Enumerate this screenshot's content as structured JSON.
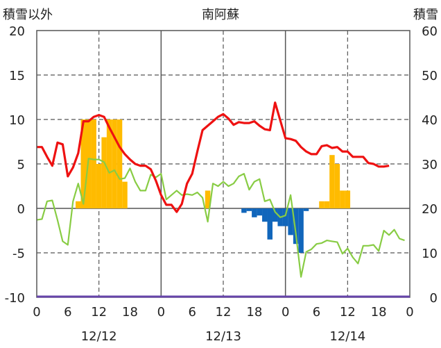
{
  "chart_data": {
    "type": "bar+line",
    "title": "南阿蘇",
    "left_axis_label": "積雪以外",
    "right_axis_label": "積雪",
    "y_left": {
      "min": -10,
      "max": 20,
      "ticks": [
        20,
        15,
        10,
        5,
        0,
        -5,
        -10
      ]
    },
    "y_right": {
      "min": 0,
      "max": 60,
      "ticks": [
        60,
        50,
        40,
        30,
        20,
        10,
        0
      ]
    },
    "x_hours": {
      "min": 0,
      "max": 72
    },
    "x_tick_labels": [
      "0",
      "6",
      "12",
      "18",
      "0",
      "6",
      "12",
      "18",
      "0",
      "6",
      "12",
      "18",
      "0"
    ],
    "x_tick_hours": [
      0,
      6,
      12,
      18,
      24,
      30,
      36,
      42,
      48,
      54,
      60,
      66,
      72
    ],
    "date_labels": [
      {
        "text": "12/12",
        "hour": 12
      },
      {
        "text": "12/13",
        "hour": 36
      },
      {
        "text": "12/14",
        "hour": 60
      }
    ],
    "grid": {
      "vertical_dashed_hours": [
        12,
        36,
        60
      ],
      "vertical_solid_hours": [
        24,
        48
      ],
      "horizontal_dashed": [
        15,
        10,
        5,
        -5
      ],
      "horizontal_solid": [
        0
      ]
    },
    "colors": {
      "temperature": "#ee1111",
      "secondary_line": "#88cc44",
      "precip_bars": "#ffbb00",
      "negative_bars": "#1166bb",
      "baseline": "#6644aa",
      "grid": "#555555"
    },
    "precip_bars": [
      {
        "hour": 8,
        "value": 0.8
      },
      {
        "hour": 9,
        "value": 10
      },
      {
        "hour": 10,
        "value": 10
      },
      {
        "hour": 11,
        "value": 10
      },
      {
        "hour": 12,
        "value": 5
      },
      {
        "hour": 13,
        "value": 8
      },
      {
        "hour": 14,
        "value": 10
      },
      {
        "hour": 15,
        "value": 10
      },
      {
        "hour": 16,
        "value": 10
      },
      {
        "hour": 17,
        "value": 3
      },
      {
        "hour": 33,
        "value": 2
      },
      {
        "hour": 55,
        "value": 0.8
      },
      {
        "hour": 56,
        "value": 0.8
      },
      {
        "hour": 57,
        "value": 6
      },
      {
        "hour": 58,
        "value": 5
      },
      {
        "hour": 59,
        "value": 2
      },
      {
        "hour": 60,
        "value": 2
      }
    ],
    "negative_bars": [
      {
        "hour": 40,
        "value": -0.5
      },
      {
        "hour": 41,
        "value": -0.3
      },
      {
        "hour": 42,
        "value": -1
      },
      {
        "hour": 43,
        "value": -0.8
      },
      {
        "hour": 44,
        "value": -1.5
      },
      {
        "hour": 45,
        "value": -3.5
      },
      {
        "hour": 46,
        "value": -1.5
      },
      {
        "hour": 47,
        "value": -2
      },
      {
        "hour": 48,
        "value": -2
      },
      {
        "hour": 49,
        "value": -3
      },
      {
        "hour": 50,
        "value": -4
      },
      {
        "hour": 51,
        "value": -5
      },
      {
        "hour": 52,
        "value": -0.3
      }
    ],
    "temperature": [
      [
        0,
        6.9
      ],
      [
        1,
        6.9
      ],
      [
        2,
        5.8
      ],
      [
        3,
        4.8
      ],
      [
        4,
        7.4
      ],
      [
        5,
        7.2
      ],
      [
        6,
        3.6
      ],
      [
        7,
        4.6
      ],
      [
        8,
        6.2
      ],
      [
        9,
        9.8
      ],
      [
        10,
        9.8
      ],
      [
        11,
        10.3
      ],
      [
        12,
        10.5
      ],
      [
        13,
        10.3
      ],
      [
        14,
        9.1
      ],
      [
        15,
        8
      ],
      [
        16,
        6.9
      ],
      [
        17,
        6.1
      ],
      [
        18,
        5.5
      ],
      [
        19,
        5
      ],
      [
        20,
        4.8
      ],
      [
        21,
        4.8
      ],
      [
        22,
        4.4
      ],
      [
        23,
        3.1
      ],
      [
        24,
        1.5
      ],
      [
        25,
        0.4
      ],
      [
        26,
        0.4
      ],
      [
        27,
        -0.4
      ],
      [
        28,
        0.5
      ],
      [
        29,
        2.8
      ],
      [
        30,
        3.9
      ],
      [
        31,
        6.4
      ],
      [
        32,
        8.8
      ],
      [
        33,
        9.3
      ],
      [
        34,
        9.8
      ],
      [
        35,
        10.3
      ],
      [
        36,
        10.6
      ],
      [
        37,
        10.1
      ],
      [
        38,
        9.4
      ],
      [
        39,
        9.7
      ],
      [
        40,
        9.6
      ],
      [
        41,
        9.6
      ],
      [
        42,
        9.8
      ],
      [
        43,
        9.3
      ],
      [
        44,
        8.9
      ],
      [
        45,
        8.8
      ],
      [
        46,
        11.9
      ],
      [
        47,
        9.9
      ],
      [
        48,
        7.9
      ],
      [
        49,
        7.8
      ],
      [
        50,
        7.6
      ],
      [
        51,
        6.9
      ],
      [
        52,
        6.4
      ],
      [
        53,
        6.1
      ],
      [
        54,
        6.1
      ],
      [
        55,
        7
      ],
      [
        56,
        7.1
      ],
      [
        57,
        6.8
      ],
      [
        58,
        6.9
      ],
      [
        59,
        6.4
      ],
      [
        60,
        6.4
      ],
      [
        61,
        5.8
      ],
      [
        62,
        5.8
      ],
      [
        63,
        5.8
      ],
      [
        64,
        5.1
      ],
      [
        65,
        5
      ],
      [
        66,
        4.7
      ],
      [
        67,
        4.7
      ],
      [
        68,
        4.8
      ]
    ],
    "secondary_line": [
      [
        0,
        -1.3
      ],
      [
        1,
        -1.2
      ],
      [
        2,
        0.8
      ],
      [
        3,
        0.9
      ],
      [
        4,
        -1.3
      ],
      [
        5,
        -3.7
      ],
      [
        6,
        -4.1
      ],
      [
        7,
        0.8
      ],
      [
        8,
        2.8
      ],
      [
        9,
        0.5
      ],
      [
        10,
        5.6
      ],
      [
        11,
        5.5
      ],
      [
        12,
        5.5
      ],
      [
        13,
        5.2
      ],
      [
        14,
        4
      ],
      [
        15,
        4.3
      ],
      [
        16,
        3.3
      ],
      [
        17,
        3.4
      ],
      [
        18,
        4.5
      ],
      [
        19,
        3
      ],
      [
        20,
        2
      ],
      [
        21,
        2
      ],
      [
        22,
        3.8
      ],
      [
        23,
        3.5
      ],
      [
        24,
        3.9
      ],
      [
        25,
        1
      ],
      [
        26,
        1.5
      ],
      [
        27,
        2
      ],
      [
        28,
        1.5
      ],
      [
        29,
        1.6
      ],
      [
        30,
        1.5
      ],
      [
        31,
        1.8
      ],
      [
        32,
        1.2
      ],
      [
        33,
        -1.5
      ],
      [
        34,
        2.8
      ],
      [
        35,
        2.5
      ],
      [
        36,
        3
      ],
      [
        37,
        2.5
      ],
      [
        38,
        2.8
      ],
      [
        39,
        3.6
      ],
      [
        40,
        3.9
      ],
      [
        41,
        2.1
      ],
      [
        42,
        3
      ],
      [
        43,
        3.3
      ],
      [
        44,
        0.8
      ],
      [
        45,
        1
      ],
      [
        46,
        -0.4
      ],
      [
        47,
        -1
      ],
      [
        48,
        -0.8
      ],
      [
        49,
        1.5
      ],
      [
        50,
        -2.8
      ],
      [
        51,
        -7.7
      ],
      [
        52,
        -4.9
      ],
      [
        53,
        -4.6
      ],
      [
        54,
        -4
      ],
      [
        55,
        -3.9
      ],
      [
        56,
        -3.6
      ],
      [
        57,
        -3.7
      ],
      [
        58,
        -3.8
      ],
      [
        59,
        -5.1
      ],
      [
        60,
        -4.5
      ],
      [
        61,
        -5.5
      ],
      [
        62,
        -6.2
      ],
      [
        63,
        -4.2
      ],
      [
        64,
        -4.2
      ],
      [
        65,
        -4.1
      ],
      [
        66,
        -4.8
      ],
      [
        67,
        -2.5
      ],
      [
        68,
        -3
      ],
      [
        69,
        -2.4
      ],
      [
        70,
        -3.4
      ],
      [
        71,
        -3.6
      ]
    ]
  }
}
